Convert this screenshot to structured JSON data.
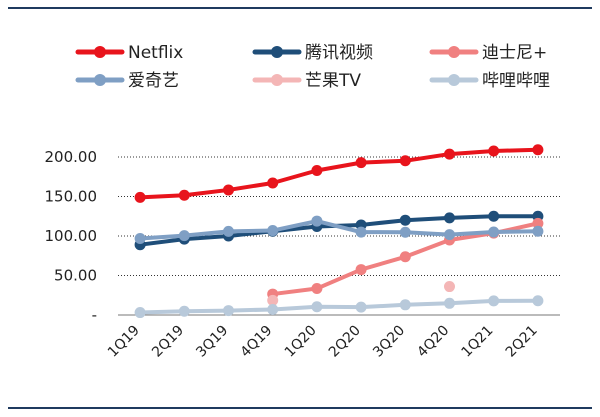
{
  "chart_data": {
    "type": "line",
    "categories": [
      "1Q19",
      "2Q19",
      "3Q19",
      "4Q19",
      "1Q20",
      "2Q20",
      "3Q20",
      "4Q20",
      "1Q21",
      "2Q21"
    ],
    "ylim": [
      0,
      200
    ],
    "y_ticks": [
      {
        "value": 0,
        "label": "-"
      },
      {
        "value": 50,
        "label": "50.00"
      },
      {
        "value": 100,
        "label": "100.00"
      },
      {
        "value": 150,
        "label": "150.00"
      },
      {
        "value": 200,
        "label": "200.00"
      }
    ],
    "grid": "horizontal dotted",
    "legend": "top",
    "series": [
      {
        "name": "Netflix",
        "color": "#e8141c",
        "values": [
          148.9,
          151.6,
          158.3,
          167.1,
          182.9,
          192.9,
          195.2,
          203.7,
          207.6,
          209.2
        ]
      },
      {
        "name": "腾讯视频",
        "color": "#1f4e79",
        "values": [
          89,
          96,
          100,
          106,
          112,
          114,
          120,
          123,
          125,
          125
        ]
      },
      {
        "name": "迪士尼+",
        "color": "#f08080",
        "values": [
          null,
          null,
          null,
          26.5,
          33.5,
          57.5,
          73.7,
          94.9,
          103.6,
          116
        ]
      },
      {
        "name": "爱奇艺",
        "color": "#7f9fc4",
        "values": [
          96.8,
          100.5,
          105.8,
          106.9,
          118.9,
          104.9,
          104.8,
          101.7,
          105,
          106
        ]
      },
      {
        "name": "芒果TV",
        "color": "#f4b6b6",
        "values": [
          null,
          null,
          null,
          18.5,
          null,
          null,
          null,
          36,
          null,
          null
        ]
      },
      {
        "name": "哔哩哔哩",
        "color": "#b8c9da",
        "values": [
          3.1,
          4.8,
          5.6,
          7,
          10.5,
          10,
          12.9,
          14.8,
          17.9,
          18
        ]
      }
    ]
  }
}
